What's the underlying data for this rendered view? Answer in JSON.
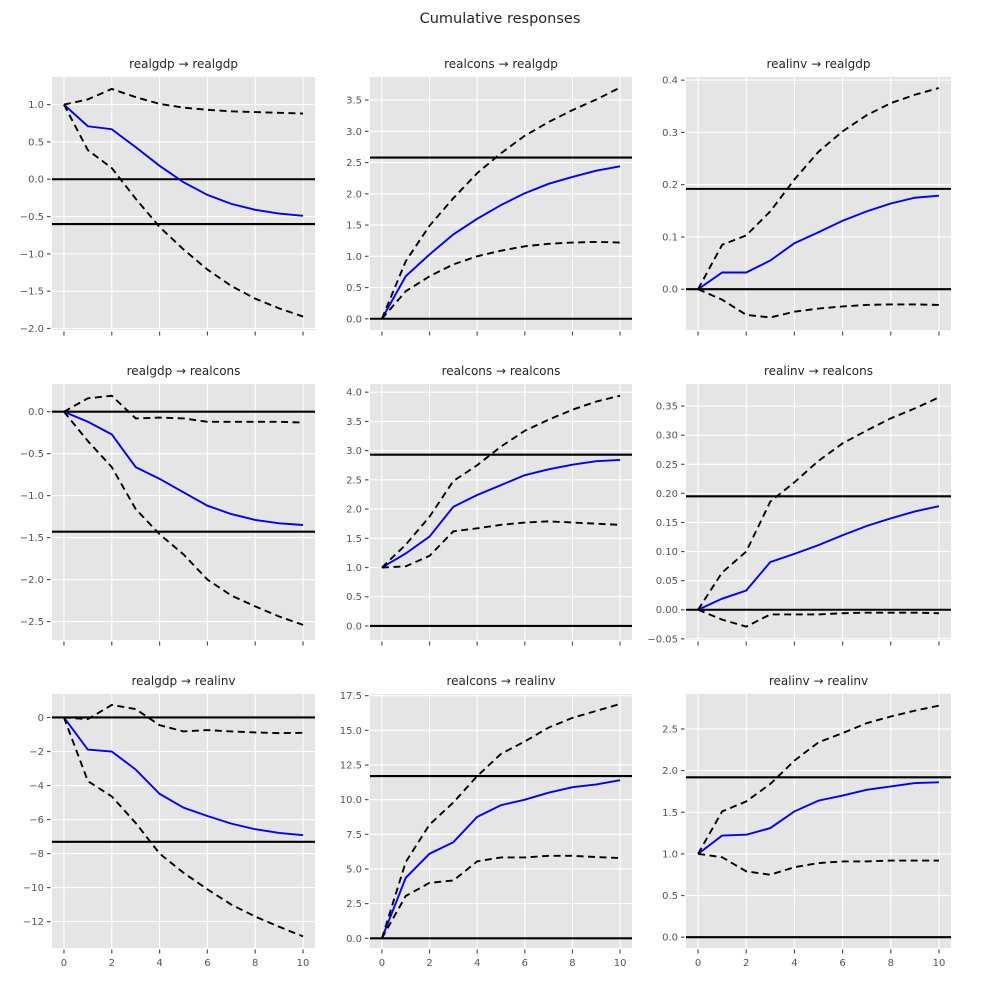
{
  "figure": {
    "title": "Cumulative responses",
    "background": "#ffffff",
    "axes_background": "#e5e5e5",
    "grid_color": "#ffffff",
    "line_color": "#0000ff",
    "band_color": "#000000",
    "hline_color": "#000000",
    "tick_label_color": "#555555",
    "title_color": "#262626"
  },
  "chart_data": [
    {
      "type": "line",
      "title": "realgdp → realgdp",
      "x": [
        0,
        1,
        2,
        3,
        4,
        5,
        6,
        7,
        8,
        9,
        10
      ],
      "series": [
        {
          "name": "irf",
          "role": "point-estimate",
          "style": "solid",
          "values": [
            1.0,
            0.71,
            0.67,
            0.43,
            0.18,
            -0.04,
            -0.21,
            -0.33,
            -0.41,
            -0.46,
            -0.49
          ]
        },
        {
          "name": "upper-band",
          "role": "upper-error-band",
          "style": "dashed",
          "values": [
            1.0,
            1.07,
            1.21,
            1.1,
            1.01,
            0.96,
            0.93,
            0.91,
            0.9,
            0.89,
            0.88
          ]
        },
        {
          "name": "lower-band",
          "role": "lower-error-band",
          "style": "dashed",
          "values": [
            1.0,
            0.39,
            0.15,
            -0.26,
            -0.64,
            -0.94,
            -1.21,
            -1.43,
            -1.6,
            -1.73,
            -1.84
          ]
        }
      ],
      "hlines": [
        0.0,
        -0.6
      ],
      "xlim": [
        -0.5,
        10.5
      ],
      "ylim": [
        -2.02,
        1.37
      ],
      "xticks": [
        0,
        2,
        4,
        6,
        8,
        10
      ],
      "yticks": [
        -2.0,
        -1.5,
        -1.0,
        -0.5,
        0.0,
        0.5,
        1.0
      ],
      "ytick_decimals": 1,
      "show_xticklabels": false,
      "grid": true
    },
    {
      "type": "line",
      "title": "realcons → realgdp",
      "x": [
        0,
        1,
        2,
        3,
        4,
        5,
        6,
        7,
        8,
        9,
        10
      ],
      "series": [
        {
          "name": "irf",
          "role": "point-estimate",
          "style": "solid",
          "values": [
            0.0,
            0.68,
            1.03,
            1.35,
            1.6,
            1.82,
            2.01,
            2.16,
            2.27,
            2.37,
            2.44
          ]
        },
        {
          "name": "upper-band",
          "role": "upper-error-band",
          "style": "dashed",
          "values": [
            0.0,
            0.92,
            1.49,
            1.93,
            2.33,
            2.65,
            2.93,
            3.15,
            3.34,
            3.51,
            3.7
          ]
        },
        {
          "name": "lower-band",
          "role": "lower-error-band",
          "style": "dashed",
          "values": [
            0.0,
            0.44,
            0.68,
            0.87,
            1.0,
            1.09,
            1.16,
            1.2,
            1.22,
            1.23,
            1.22
          ]
        }
      ],
      "hlines": [
        0.0,
        2.58
      ],
      "xlim": [
        -0.5,
        10.5
      ],
      "ylim": [
        -0.18,
        3.87
      ],
      "xticks": [
        0,
        2,
        4,
        6,
        8,
        10
      ],
      "yticks": [
        0.0,
        0.5,
        1.0,
        1.5,
        2.0,
        2.5,
        3.0,
        3.5
      ],
      "ytick_decimals": 1,
      "show_xticklabels": false,
      "grid": true
    },
    {
      "type": "line",
      "title": "realinv → realgdp",
      "x": [
        0,
        1,
        2,
        3,
        4,
        5,
        6,
        7,
        8,
        9,
        10
      ],
      "series": [
        {
          "name": "irf",
          "role": "point-estimate",
          "style": "solid",
          "values": [
            0.0,
            0.032,
            0.032,
            0.055,
            0.088,
            0.109,
            0.131,
            0.149,
            0.164,
            0.175,
            0.179
          ]
        },
        {
          "name": "upper-band",
          "role": "upper-error-band",
          "style": "dashed",
          "values": [
            0.0,
            0.085,
            0.103,
            0.149,
            0.21,
            0.263,
            0.302,
            0.333,
            0.356,
            0.372,
            0.385
          ]
        },
        {
          "name": "lower-band",
          "role": "lower-error-band",
          "style": "dashed",
          "values": [
            0.0,
            -0.02,
            -0.049,
            -0.054,
            -0.043,
            -0.037,
            -0.033,
            -0.03,
            -0.029,
            -0.029,
            -0.03
          ]
        }
      ],
      "hlines": [
        0.0,
        0.192
      ],
      "xlim": [
        -0.5,
        10.5
      ],
      "ylim": [
        -0.078,
        0.406
      ],
      "xticks": [
        0,
        2,
        4,
        6,
        8,
        10
      ],
      "yticks": [
        0.0,
        0.1,
        0.2,
        0.3,
        0.4
      ],
      "ytick_decimals": 1,
      "show_xticklabels": false,
      "grid": true
    },
    {
      "type": "line",
      "title": "realgdp → realcons",
      "x": [
        0,
        1,
        2,
        3,
        4,
        5,
        6,
        7,
        8,
        9,
        10
      ],
      "series": [
        {
          "name": "irf",
          "role": "point-estimate",
          "style": "solid",
          "values": [
            0.0,
            -0.12,
            -0.27,
            -0.66,
            -0.8,
            -0.96,
            -1.12,
            -1.22,
            -1.29,
            -1.33,
            -1.35
          ]
        },
        {
          "name": "upper-band",
          "role": "upper-error-band",
          "style": "dashed",
          "values": [
            0.0,
            0.16,
            0.19,
            -0.08,
            -0.07,
            -0.08,
            -0.12,
            -0.12,
            -0.12,
            -0.12,
            -0.13
          ]
        },
        {
          "name": "lower-band",
          "role": "lower-error-band",
          "style": "dashed",
          "values": [
            0.0,
            -0.35,
            -0.66,
            -1.16,
            -1.46,
            -1.7,
            -2.0,
            -2.19,
            -2.32,
            -2.44,
            -2.54
          ]
        }
      ],
      "hlines": [
        0.0,
        -1.43
      ],
      "xlim": [
        -0.5,
        10.5
      ],
      "ylim": [
        -2.72,
        0.33
      ],
      "xticks": [
        0,
        2,
        4,
        6,
        8,
        10
      ],
      "yticks": [
        -2.5,
        -2.0,
        -1.5,
        -1.0,
        -0.5,
        0.0
      ],
      "ytick_decimals": 1,
      "show_xticklabels": false,
      "grid": true
    },
    {
      "type": "line",
      "title": "realcons → realcons",
      "x": [
        0,
        1,
        2,
        3,
        4,
        5,
        6,
        7,
        8,
        9,
        10
      ],
      "series": [
        {
          "name": "irf",
          "role": "point-estimate",
          "style": "solid",
          "values": [
            1.0,
            1.24,
            1.53,
            2.04,
            2.24,
            2.41,
            2.58,
            2.68,
            2.76,
            2.82,
            2.84
          ]
        },
        {
          "name": "upper-band",
          "role": "upper-error-band",
          "style": "dashed",
          "values": [
            1.0,
            1.39,
            1.87,
            2.48,
            2.75,
            3.07,
            3.34,
            3.53,
            3.7,
            3.84,
            3.94
          ]
        },
        {
          "name": "lower-band",
          "role": "lower-error-band",
          "style": "dashed",
          "values": [
            1.0,
            1.02,
            1.2,
            1.62,
            1.67,
            1.73,
            1.77,
            1.79,
            1.77,
            1.75,
            1.73
          ]
        }
      ],
      "hlines": [
        0.0,
        2.93
      ],
      "xlim": [
        -0.5,
        10.5
      ],
      "ylim": [
        -0.24,
        4.14
      ],
      "xticks": [
        0,
        2,
        4,
        6,
        8,
        10
      ],
      "yticks": [
        0.0,
        0.5,
        1.0,
        1.5,
        2.0,
        2.5,
        3.0,
        3.5,
        4.0
      ],
      "ytick_decimals": 1,
      "show_xticklabels": false,
      "grid": true
    },
    {
      "type": "line",
      "title": "realinv → realcons",
      "x": [
        0,
        1,
        2,
        3,
        4,
        5,
        6,
        7,
        8,
        9,
        10
      ],
      "series": [
        {
          "name": "irf",
          "role": "point-estimate",
          "style": "solid",
          "values": [
            0.0,
            0.019,
            0.033,
            0.082,
            0.096,
            0.111,
            0.128,
            0.144,
            0.157,
            0.169,
            0.178
          ]
        },
        {
          "name": "upper-band",
          "role": "upper-error-band",
          "style": "dashed",
          "values": [
            0.0,
            0.064,
            0.1,
            0.186,
            0.219,
            0.256,
            0.286,
            0.308,
            0.329,
            0.346,
            0.365
          ]
        },
        {
          "name": "lower-band",
          "role": "lower-error-band",
          "style": "dashed",
          "values": [
            0.0,
            -0.017,
            -0.029,
            -0.008,
            -0.008,
            -0.008,
            -0.006,
            -0.005,
            -0.005,
            -0.005,
            -0.006
          ]
        }
      ],
      "hlines": [
        0.0,
        0.195
      ],
      "xlim": [
        -0.5,
        10.5
      ],
      "ylim": [
        -0.052,
        0.388
      ],
      "xticks": [
        0,
        2,
        4,
        6,
        8,
        10
      ],
      "yticks": [
        -0.05,
        0.0,
        0.05,
        0.1,
        0.15,
        0.2,
        0.25,
        0.3,
        0.35
      ],
      "ytick_decimals": 2,
      "show_xticklabels": false,
      "grid": true
    },
    {
      "type": "line",
      "title": "realgdp → realinv",
      "x": [
        0,
        1,
        2,
        3,
        4,
        5,
        6,
        7,
        8,
        9,
        10
      ],
      "series": [
        {
          "name": "irf",
          "role": "point-estimate",
          "style": "solid",
          "values": [
            0.0,
            -1.89,
            -2.0,
            -3.06,
            -4.49,
            -5.3,
            -5.79,
            -6.24,
            -6.57,
            -6.79,
            -6.92
          ]
        },
        {
          "name": "upper-band",
          "role": "upper-error-band",
          "style": "dashed",
          "values": [
            0.0,
            -0.1,
            0.74,
            0.49,
            -0.45,
            -0.82,
            -0.74,
            -0.82,
            -0.88,
            -0.92,
            -0.9
          ]
        },
        {
          "name": "lower-band",
          "role": "lower-error-band",
          "style": "dashed",
          "values": [
            0.0,
            -3.74,
            -4.64,
            -6.2,
            -8.0,
            -9.13,
            -10.1,
            -11.0,
            -11.7,
            -12.3,
            -12.87
          ]
        }
      ],
      "hlines": [
        0.0,
        -7.31
      ],
      "xlim": [
        -0.5,
        10.5
      ],
      "ylim": [
        -13.55,
        1.38
      ],
      "xticks": [
        0,
        2,
        4,
        6,
        8,
        10
      ],
      "yticks": [
        -12,
        -10,
        -8,
        -6,
        -4,
        -2,
        0
      ],
      "ytick_decimals": 0,
      "show_xticklabels": true,
      "grid": true
    },
    {
      "type": "line",
      "title": "realcons → realinv",
      "x": [
        0,
        1,
        2,
        3,
        4,
        5,
        6,
        7,
        8,
        9,
        10
      ],
      "series": [
        {
          "name": "irf",
          "role": "point-estimate",
          "style": "solid",
          "values": [
            0.0,
            4.36,
            6.1,
            6.93,
            8.76,
            9.6,
            10.0,
            10.5,
            10.9,
            11.1,
            11.4
          ]
        },
        {
          "name": "upper-band",
          "role": "upper-error-band",
          "style": "dashed",
          "values": [
            0.0,
            5.5,
            8.2,
            9.8,
            11.7,
            13.3,
            14.2,
            15.2,
            15.9,
            16.4,
            16.9
          ]
        },
        {
          "name": "lower-band",
          "role": "lower-error-band",
          "style": "dashed",
          "values": [
            0.0,
            3.05,
            4.0,
            4.17,
            5.55,
            5.83,
            5.83,
            5.95,
            5.95,
            5.86,
            5.79
          ]
        }
      ],
      "hlines": [
        0.0,
        11.7
      ],
      "xlim": [
        -0.5,
        10.5
      ],
      "ylim": [
        -0.7,
        17.62
      ],
      "xticks": [
        0,
        2,
        4,
        6,
        8,
        10
      ],
      "yticks": [
        0.0,
        2.5,
        5.0,
        7.5,
        10.0,
        12.5,
        15.0,
        17.5
      ],
      "ytick_decimals": 1,
      "show_xticklabels": true,
      "grid": true
    },
    {
      "type": "line",
      "title": "realinv → realinv",
      "x": [
        0,
        1,
        2,
        3,
        4,
        5,
        6,
        7,
        8,
        9,
        10
      ],
      "series": [
        {
          "name": "irf",
          "role": "point-estimate",
          "style": "solid",
          "values": [
            1.0,
            1.22,
            1.23,
            1.31,
            1.51,
            1.64,
            1.7,
            1.77,
            1.81,
            1.85,
            1.86
          ]
        },
        {
          "name": "upper-band",
          "role": "upper-error-band",
          "style": "dashed",
          "values": [
            1.0,
            1.51,
            1.63,
            1.84,
            2.12,
            2.34,
            2.45,
            2.57,
            2.65,
            2.72,
            2.78
          ]
        },
        {
          "name": "lower-band",
          "role": "lower-error-band",
          "style": "dashed",
          "values": [
            1.0,
            0.96,
            0.79,
            0.75,
            0.84,
            0.89,
            0.91,
            0.91,
            0.92,
            0.92,
            0.92
          ]
        }
      ],
      "hlines": [
        0.0,
        1.92
      ],
      "xlim": [
        -0.5,
        10.5
      ],
      "ylim": [
        -0.13,
        2.92
      ],
      "xticks": [
        0,
        2,
        4,
        6,
        8,
        10
      ],
      "yticks": [
        0.0,
        0.5,
        1.0,
        1.5,
        2.0,
        2.5
      ],
      "ytick_decimals": 1,
      "show_xticklabels": true,
      "grid": true
    }
  ]
}
